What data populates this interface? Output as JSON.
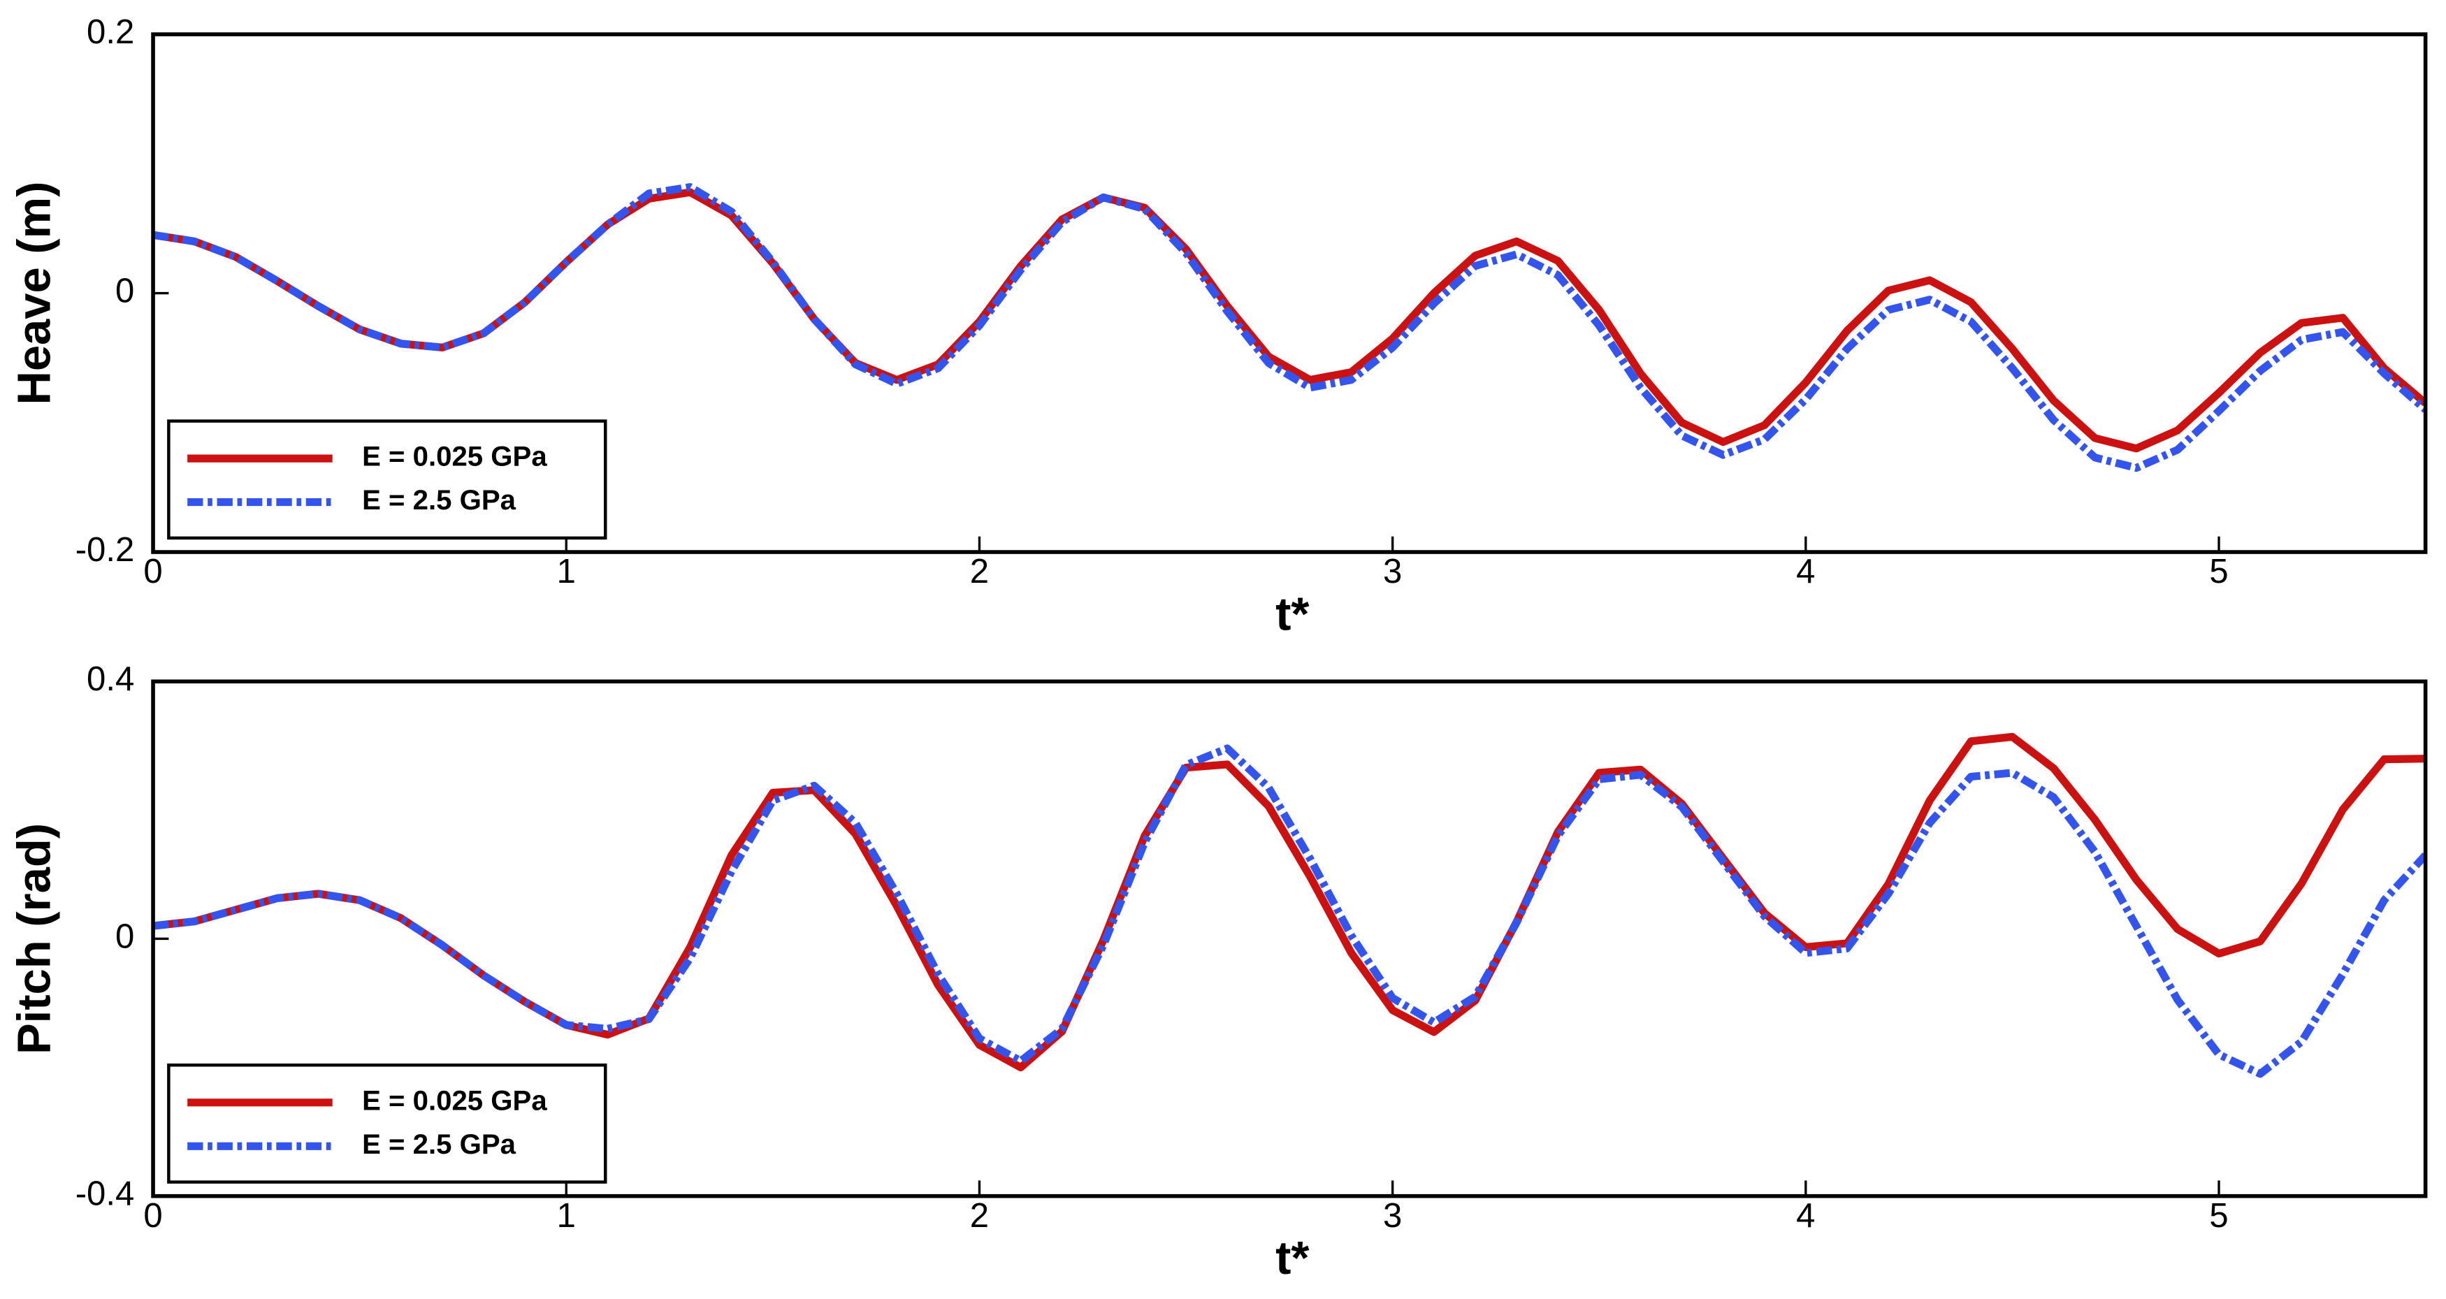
{
  "chart_data": [
    {
      "type": "line",
      "xlabel": "t*",
      "ylabel": "Heave (m)",
      "xlim": [
        0,
        5.5
      ],
      "ylim": [
        -0.2,
        0.2
      ],
      "xticks": [
        0,
        1,
        2,
        3,
        4,
        5
      ],
      "yticks": [
        -0.2,
        0,
        0.2
      ],
      "legend": "lower left",
      "x": [
        0,
        0.1,
        0.2,
        0.3,
        0.4,
        0.5,
        0.6,
        0.7,
        0.8,
        0.9,
        1,
        1.1,
        1.2,
        1.3,
        1.4,
        1.5,
        1.6,
        1.7,
        1.8,
        1.9,
        2,
        2.1,
        2.2,
        2.3,
        2.4,
        2.5,
        2.6,
        2.7,
        2.8,
        2.9,
        3,
        3.1,
        3.2,
        3.3,
        3.4,
        3.5,
        3.6,
        3.7,
        3.8,
        3.9,
        4,
        4.1,
        4.2,
        4.3,
        4.4,
        4.5,
        4.6,
        4.7,
        4.8,
        4.9,
        5,
        5.1,
        5.2,
        5.3,
        5.4,
        5.5
      ],
      "series": [
        {
          "name": "E = 0.025 GPa",
          "color": "#cc1111",
          "style": "solid",
          "values": [
            0.045,
            0.04,
            0.028,
            0.0095,
            -0.01,
            -0.028,
            -0.039,
            -0.042,
            -0.031,
            -0.007,
            0.024,
            0.053,
            0.073,
            0.078,
            0.06,
            0.023,
            -0.02,
            -0.054,
            -0.067,
            -0.055,
            -0.022,
            0.021,
            0.057,
            0.074,
            0.066,
            0.034,
            -0.01,
            -0.049,
            -0.067,
            -0.061,
            -0.035,
            0,
            0.029,
            0.04,
            0.025,
            -0.013,
            -0.062,
            -0.1,
            -0.115,
            -0.102,
            -0.069,
            -0.029,
            0.002,
            0.01,
            -0.007,
            -0.043,
            -0.083,
            -0.112,
            -0.12,
            -0.106,
            -0.077,
            -0.046,
            -0.023,
            -0.019,
            -0.058,
            -0.085
          ]
        },
        {
          "name": "E = 2.5 GPa",
          "color": "#3355ee",
          "style": "dashdot",
          "values": [
            0.045,
            0.04,
            0.028,
            0.0095,
            -0.01,
            -0.028,
            -0.039,
            -0.042,
            -0.031,
            -0.007,
            0.024,
            0.053,
            0.077,
            0.082,
            0.063,
            0.024,
            -0.02,
            -0.055,
            -0.07,
            -0.058,
            -0.025,
            0.018,
            0.055,
            0.074,
            0.065,
            0.031,
            -0.014,
            -0.054,
            -0.073,
            -0.067,
            -0.042,
            -0.008,
            0.021,
            0.03,
            0.014,
            -0.025,
            -0.073,
            -0.11,
            -0.125,
            -0.113,
            -0.082,
            -0.043,
            -0.013,
            -0.005,
            -0.022,
            -0.058,
            -0.098,
            -0.127,
            -0.135,
            -0.121,
            -0.091,
            -0.06,
            -0.036,
            -0.03,
            -0.062,
            -0.09
          ]
        }
      ]
    },
    {
      "type": "line",
      "xlabel": "t*",
      "ylabel": "Pitch (rad)",
      "xlim": [
        0,
        5.5
      ],
      "ylim": [
        -0.4,
        0.4
      ],
      "xticks": [
        0,
        1,
        2,
        3,
        4,
        5
      ],
      "yticks": [
        -0.4,
        0,
        0.4
      ],
      "legend": "lower left",
      "x": [
        0,
        0.1,
        0.2,
        0.3,
        0.4,
        0.5,
        0.6,
        0.7,
        0.8,
        0.9,
        1,
        1.1,
        1.2,
        1.3,
        1.4,
        1.5,
        1.6,
        1.7,
        1.8,
        1.9,
        2,
        2.1,
        2.2,
        2.3,
        2.4,
        2.5,
        2.6,
        2.7,
        2.8,
        2.9,
        3,
        3.1,
        3.2,
        3.3,
        3.4,
        3.5,
        3.6,
        3.7,
        3.8,
        3.9,
        4,
        4.1,
        4.2,
        4.3,
        4.4,
        4.5,
        4.6,
        4.7,
        4.8,
        4.9,
        5,
        5.1,
        5.2,
        5.3,
        5.4,
        5.5
      ],
      "series": [
        {
          "name": "E = 0.025 GPa",
          "color": "#cc1111",
          "style": "solid",
          "values": [
            0.02,
            0.027,
            0.045,
            0.063,
            0.07,
            0.06,
            0.032,
            -0.01,
            -0.057,
            -0.098,
            -0.134,
            -0.149,
            -0.124,
            -0.013,
            0.13,
            0.227,
            0.231,
            0.163,
            0.051,
            -0.072,
            -0.165,
            -0.2,
            -0.144,
            -0.002,
            0.16,
            0.266,
            0.271,
            0.206,
            0.097,
            -0.022,
            -0.111,
            -0.145,
            -0.096,
            0.026,
            0.166,
            0.258,
            0.263,
            0.21,
            0.125,
            0.04,
            -0.013,
            -0.007,
            0.085,
            0.215,
            0.307,
            0.314,
            0.265,
            0.185,
            0.092,
            0.015,
            -0.023,
            -0.004,
            0.086,
            0.201,
            0.279,
            0.28
          ]
        },
        {
          "name": "E = 2.5 GPa",
          "color": "#3355ee",
          "style": "dashdot",
          "values": [
            0.02,
            0.027,
            0.045,
            0.063,
            0.07,
            0.06,
            0.032,
            -0.01,
            -0.057,
            -0.098,
            -0.134,
            -0.14,
            -0.125,
            -0.03,
            0.105,
            0.215,
            0.238,
            0.18,
            0.07,
            -0.055,
            -0.155,
            -0.19,
            -0.14,
            -0.01,
            0.15,
            0.27,
            0.296,
            0.235,
            0.125,
            0.005,
            -0.092,
            -0.13,
            -0.09,
            0.025,
            0.16,
            0.248,
            0.255,
            0.205,
            0.12,
            0.035,
            -0.022,
            -0.015,
            0.07,
            0.18,
            0.252,
            0.258,
            0.22,
            0.135,
            0.02,
            -0.095,
            -0.18,
            -0.21,
            -0.16,
            -0.055,
            0.06,
            0.13
          ]
        }
      ]
    }
  ]
}
